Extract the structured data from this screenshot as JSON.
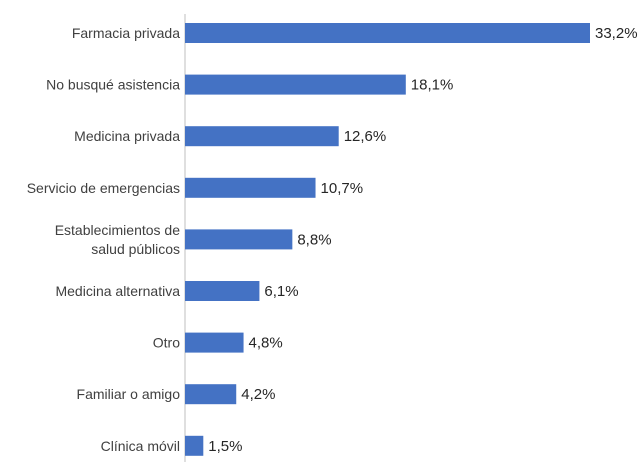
{
  "chart_data": {
    "type": "bar",
    "orientation": "horizontal",
    "categories": [
      "Farmacia privada",
      "No busqué asistencia",
      "Medicina privada",
      "Servicio de emergencias",
      "Establecimientos de salud públicos",
      "Medicina alternativa",
      "Otro",
      "Familiar o amigo",
      "Clínica móvil"
    ],
    "category_lines": [
      [
        "Farmacia privada"
      ],
      [
        "No busqué asistencia"
      ],
      [
        "Medicina privada"
      ],
      [
        "Servicio de emergencias"
      ],
      [
        "Establecimientos de",
        "salud públicos"
      ],
      [
        "Medicina alternativa"
      ],
      [
        "Otro"
      ],
      [
        "Familiar o amigo"
      ],
      [
        "Clínica móvil"
      ]
    ],
    "values": [
      33.2,
      18.1,
      12.6,
      10.7,
      8.8,
      6.1,
      4.8,
      4.2,
      1.5
    ],
    "data_labels": [
      "33,2%",
      "18,1%",
      "12,6%",
      "10,7%",
      "8,8%",
      "6,1%",
      "4,8%",
      "4,2%",
      "1,5%"
    ],
    "unit": "%",
    "xlim": [
      0,
      33.2
    ],
    "bar_color": "#4472C4",
    "axis_color": "#BFBFBF",
    "grid": false,
    "legend": "none"
  }
}
